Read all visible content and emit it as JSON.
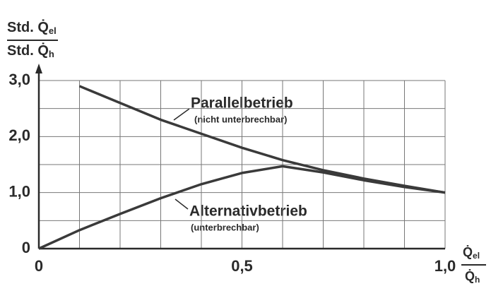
{
  "chart_data": {
    "type": "line",
    "y_label": {
      "numerator": "Std. Q̇",
      "numerator_sub": "el",
      "denominator": "Std. Q̇",
      "denominator_sub": "h"
    },
    "x_label": {
      "numerator": "Q̇",
      "numerator_sub": "el",
      "denominator": "Q̇",
      "denominator_sub": "h"
    },
    "x": [
      0,
      0.1,
      0.2,
      0.3,
      0.4,
      0.5,
      0.6,
      0.7,
      0.8,
      0.9,
      1.0
    ],
    "series": [
      {
        "name": "Parallelbetrieb",
        "note": "(nicht unterbrechbar)",
        "color": "#3a3a3a",
        "values": [
          null,
          2.9,
          2.6,
          2.3,
          2.05,
          1.8,
          1.58,
          1.4,
          1.25,
          1.12,
          1.0
        ]
      },
      {
        "name": "Alternativbetrieb",
        "note": "(unterbrechbar)",
        "color": "#3a3a3a",
        "values": [
          0,
          0.33,
          0.62,
          0.9,
          1.15,
          1.35,
          1.47,
          1.36,
          1.22,
          1.1,
          1.0
        ]
      }
    ],
    "xlim": [
      0,
      1.0
    ],
    "ylim": [
      0,
      3.0
    ],
    "xticks": [
      0,
      {
        "value": 0.5,
        "label": "0,5"
      },
      {
        "value": 1.0,
        "label": "1,0"
      }
    ],
    "x_grid": [
      0.1,
      0.2,
      0.3,
      0.4,
      0.6,
      0.7,
      0.8,
      0.9
    ],
    "yticks": [
      0,
      {
        "value": 1.0,
        "label": "1,0"
      },
      {
        "value": 2.0,
        "label": "2,0"
      },
      {
        "value": 3.0,
        "label": "3,0"
      }
    ],
    "y_grid": [
      0.5,
      1.5,
      2.5
    ],
    "grid": true
  }
}
